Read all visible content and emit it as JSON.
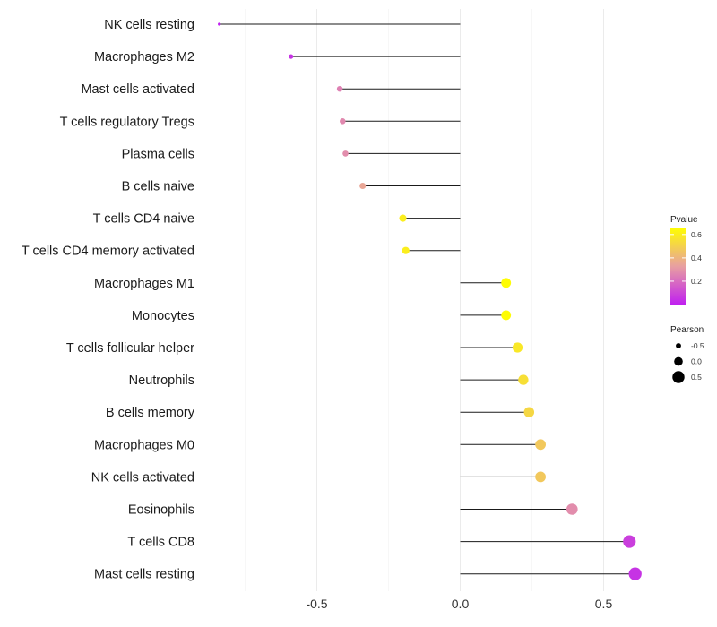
{
  "chart_data": {
    "type": "lollipop",
    "title": "",
    "xlabel": "",
    "ylabel": "",
    "xlim": [
      -0.88,
      0.65
    ],
    "x_ticks": [
      -0.5,
      0.0,
      0.5
    ],
    "x_tick_labels": [
      "-0.5",
      "0.0",
      "0.5"
    ],
    "grid": true,
    "categories": [
      "NK cells resting",
      "Macrophages M2",
      "Mast cells activated",
      "T cells regulatory  Tregs ",
      "Plasma cells",
      "B cells naive",
      "T cells CD4 naive",
      "T cells CD4 memory activated",
      "Macrophages M1",
      "Monocytes",
      "T cells follicular helper",
      "Neutrophils",
      "B cells memory",
      "Macrophages M0",
      "NK cells activated",
      "Eosinophils",
      "T cells CD8",
      "Mast cells resting"
    ],
    "pearson": [
      -0.84,
      -0.59,
      -0.42,
      -0.41,
      -0.4,
      -0.34,
      -0.2,
      -0.19,
      0.16,
      0.16,
      0.2,
      0.22,
      0.24,
      0.28,
      0.28,
      0.39,
      0.59,
      0.61
    ],
    "pvalue": [
      0.0,
      0.05,
      0.25,
      0.27,
      0.28,
      0.35,
      0.6,
      0.6,
      0.65,
      0.65,
      0.58,
      0.55,
      0.52,
      0.47,
      0.47,
      0.28,
      0.08,
      0.05
    ],
    "legend_color": {
      "title": "Pvalue",
      "ticks": [
        0.2,
        0.4,
        0.6
      ],
      "tick_labels": [
        "0.2",
        "0.4",
        "0.6"
      ],
      "range": [
        0.0,
        0.66
      ],
      "low_color": "#c020f0",
      "mid_color": "#e8a0a0",
      "high_color": "#ffff00"
    },
    "legend_size": {
      "title": "Pearson",
      "values": [
        -0.5,
        0.0,
        0.5
      ],
      "labels": [
        "-0.5",
        "0.0",
        "0.5"
      ]
    },
    "legend_position": "right"
  }
}
